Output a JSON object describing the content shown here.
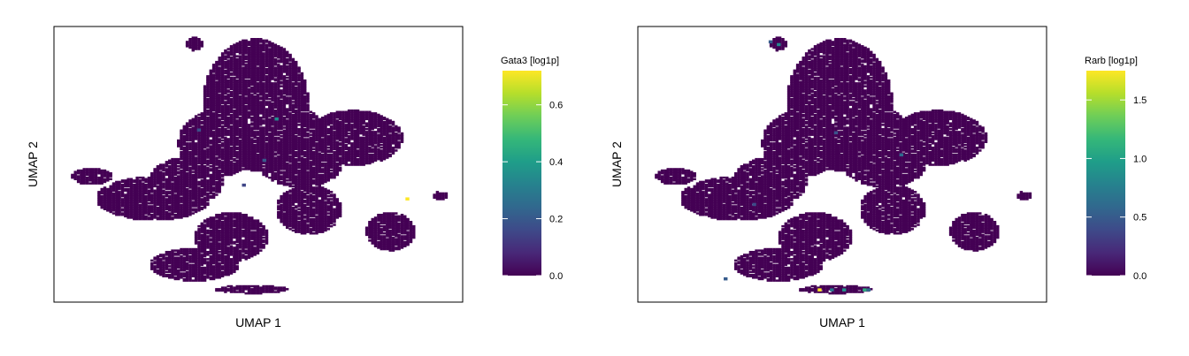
{
  "chart_data": [
    {
      "type": "scatter",
      "title": "",
      "xlabel": "UMAP 1",
      "ylabel": "UMAP 2",
      "colorbar": {
        "title": "Gata3 [log1p]",
        "range": [
          0,
          0.72
        ],
        "ticks": [
          "0.0",
          "0.2",
          "0.4",
          "0.6"
        ],
        "tick_values": [
          0.0,
          0.2,
          0.4,
          0.6
        ],
        "colormap": "viridis"
      },
      "background_value": 0.0,
      "highlights": [
        {
          "x": 0.86,
          "y": 0.38,
          "value": 0.72
        },
        {
          "x": 0.54,
          "y": 0.67,
          "value": 0.35
        },
        {
          "x": 0.51,
          "y": 0.52,
          "value": 0.2
        },
        {
          "x": 0.35,
          "y": 0.63,
          "value": 0.18
        },
        {
          "x": 0.46,
          "y": 0.43,
          "value": 0.15
        }
      ]
    },
    {
      "type": "scatter",
      "title": "",
      "xlabel": "UMAP 1",
      "ylabel": "UMAP 2",
      "colorbar": {
        "title": "Rarb [log1p]",
        "range": [
          0,
          1.75
        ],
        "ticks": [
          "0.0",
          "0.5",
          "1.0",
          "1.5"
        ],
        "tick_values": [
          0.0,
          0.5,
          1.0,
          1.5
        ],
        "colormap": "viridis"
      },
      "background_value": 0.0,
      "highlights": [
        {
          "x": 0.44,
          "y": 0.05,
          "value": 1.75
        },
        {
          "x": 0.5,
          "y": 0.05,
          "value": 0.9
        },
        {
          "x": 0.55,
          "y": 0.05,
          "value": 1.1
        },
        {
          "x": 0.56,
          "y": 0.05,
          "value": 0.6
        },
        {
          "x": 0.47,
          "y": 0.05,
          "value": 0.7
        },
        {
          "x": 0.34,
          "y": 0.94,
          "value": 0.8
        },
        {
          "x": 0.32,
          "y": 0.95,
          "value": 0.5
        },
        {
          "x": 0.64,
          "y": 0.54,
          "value": 0.6
        },
        {
          "x": 0.21,
          "y": 0.09,
          "value": 0.5
        },
        {
          "x": 0.48,
          "y": 0.62,
          "value": 0.45
        },
        {
          "x": 0.28,
          "y": 0.36,
          "value": 0.4
        }
      ]
    }
  ]
}
